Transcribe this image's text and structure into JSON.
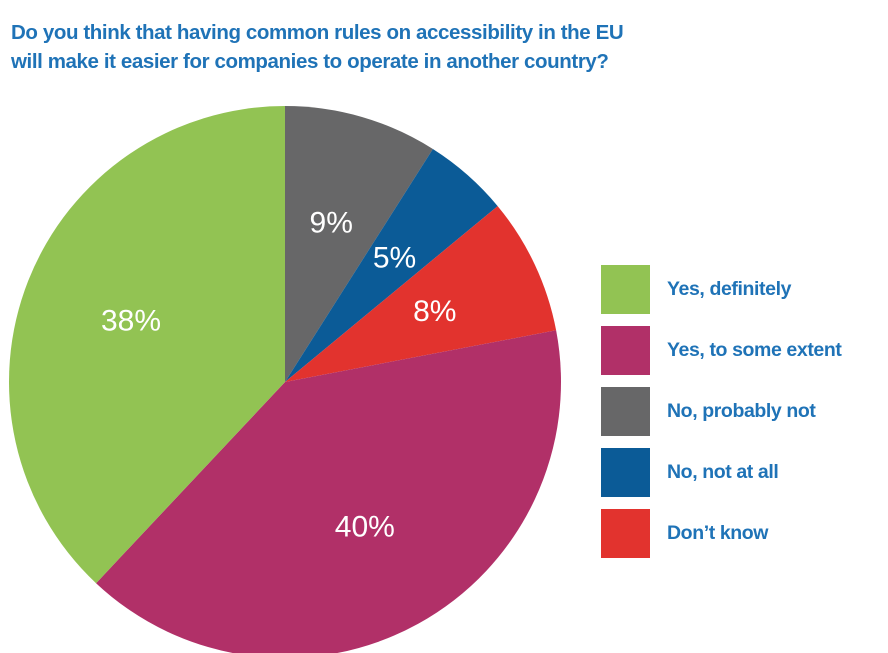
{
  "chart_data": {
    "type": "pie",
    "title_lines": [
      "Do you think that having common rules on accessibility in the EU",
      "will make it easier for companies to operate in another country?"
    ],
    "slices": [
      {
        "label": "Yes, definitely",
        "value": 38,
        "display": "38%",
        "color": "#92c353"
      },
      {
        "label": "Yes, to some extent",
        "value": 40,
        "display": "40%",
        "color": "#b13068"
      },
      {
        "label": "No, probably not",
        "value": 9,
        "display": "9%",
        "color": "#676768"
      },
      {
        "label": "No, not at all",
        "value": 5,
        "display": "5%",
        "color": "#0b5b97"
      },
      {
        "label": "Don’t know",
        "value": 8,
        "display": "8%",
        "color": "#e2332e"
      }
    ],
    "draw_order": [
      2,
      3,
      4,
      1,
      0
    ],
    "start_angle_deg": 0,
    "direction": "clockwise",
    "legend_position": "right",
    "legend_order": [
      0,
      1,
      2,
      3,
      4
    ]
  }
}
